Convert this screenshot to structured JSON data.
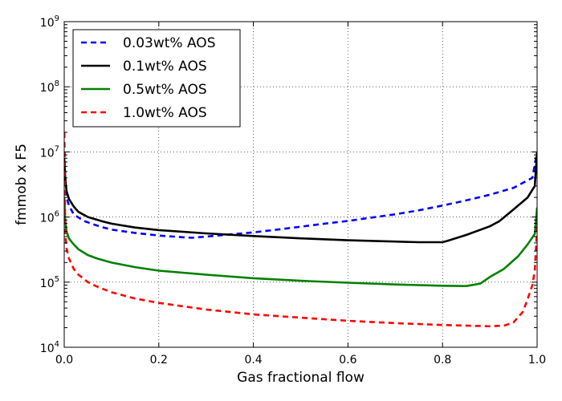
{
  "chart_data": {
    "type": "line",
    "title": "",
    "xlabel": "Gas fractional flow",
    "ylabel": "fmmob x F5",
    "xlim": [
      0.0,
      1.0
    ],
    "ylim": [
      10000,
      1000000000
    ],
    "yscale": "log",
    "grid": true,
    "legend_position": "top-left",
    "x_ticks": [
      0.0,
      0.2,
      0.4,
      0.6,
      0.8,
      1.0
    ],
    "x_tick_labels": [
      "0.0",
      "0.2",
      "0.4",
      "0.6",
      "0.8",
      "1.0"
    ],
    "y_tick_exponents": [
      4,
      5,
      6,
      7,
      8,
      9
    ],
    "y_tick_base": "10",
    "series": [
      {
        "name": "0.03wt% AOS",
        "color": "#0000ff",
        "dash": "dashed",
        "x": [
          0.0,
          0.002,
          0.005,
          0.01,
          0.02,
          0.04,
          0.06,
          0.08,
          0.1,
          0.15,
          0.2,
          0.25,
          0.27,
          0.3,
          0.35,
          0.4,
          0.45,
          0.5,
          0.55,
          0.6,
          0.65,
          0.7,
          0.75,
          0.8,
          0.85,
          0.9,
          0.95,
          0.99,
          1.0
        ],
        "y": [
          20000000,
          3000000,
          2000000,
          1500000,
          1100000,
          880000,
          780000,
          700000,
          640000,
          570000,
          520000,
          490000,
          480000,
          500000,
          540000,
          580000,
          640000,
          710000,
          790000,
          870000,
          980000,
          1100000,
          1270000,
          1500000,
          1800000,
          2200000,
          2800000,
          4000000,
          10000000
        ]
      },
      {
        "name": "0.1wt% AOS",
        "color": "#000000",
        "dash": "solid",
        "x": [
          0.0,
          0.002,
          0.005,
          0.01,
          0.02,
          0.03,
          0.05,
          0.08,
          0.1,
          0.15,
          0.2,
          0.3,
          0.4,
          0.5,
          0.6,
          0.7,
          0.75,
          0.8,
          0.81,
          0.85,
          0.9,
          0.92,
          0.95,
          0.98,
          0.995,
          1.0
        ],
        "y": [
          8000000,
          4000000,
          2500000,
          1900000,
          1450000,
          1200000,
          1000000,
          860000,
          790000,
          690000,
          630000,
          560000,
          510000,
          470000,
          440000,
          420000,
          410000,
          410000,
          430000,
          530000,
          720000,
          860000,
          1300000,
          2000000,
          3000000,
          10000000
        ]
      },
      {
        "name": "0.5wt% AOS",
        "color": "#008000",
        "dash": "solid",
        "x": [
          0.0,
          0.002,
          0.005,
          0.01,
          0.015,
          0.02,
          0.03,
          0.05,
          0.07,
          0.1,
          0.15,
          0.2,
          0.3,
          0.4,
          0.5,
          0.6,
          0.7,
          0.8,
          0.85,
          0.88,
          0.9,
          0.93,
          0.96,
          0.98,
          0.995,
          1.0
        ],
        "y": [
          2000000,
          900000,
          600000,
          470000,
          420000,
          380000,
          320000,
          260000,
          230000,
          200000,
          170000,
          150000,
          130000,
          115000,
          105000,
          98000,
          92000,
          88000,
          87000,
          95000,
          120000,
          160000,
          250000,
          380000,
          550000,
          1400000
        ]
      },
      {
        "name": "1.0wt% AOS",
        "color": "#ff0000",
        "dash": "dashed",
        "x": [
          0.0,
          0.002,
          0.005,
          0.01,
          0.02,
          0.03,
          0.05,
          0.07,
          0.1,
          0.15,
          0.2,
          0.3,
          0.4,
          0.5,
          0.6,
          0.7,
          0.8,
          0.9,
          0.93,
          0.95,
          0.97,
          0.98,
          0.99,
          0.995,
          1.0
        ],
        "y": [
          20000000,
          600000,
          330000,
          230000,
          160000,
          130000,
          100000,
          85000,
          70000,
          56000,
          48000,
          38000,
          32000,
          28500,
          25500,
          23500,
          22000,
          21000,
          21500,
          24000,
          35000,
          55000,
          90000,
          150000,
          700000
        ]
      }
    ]
  }
}
